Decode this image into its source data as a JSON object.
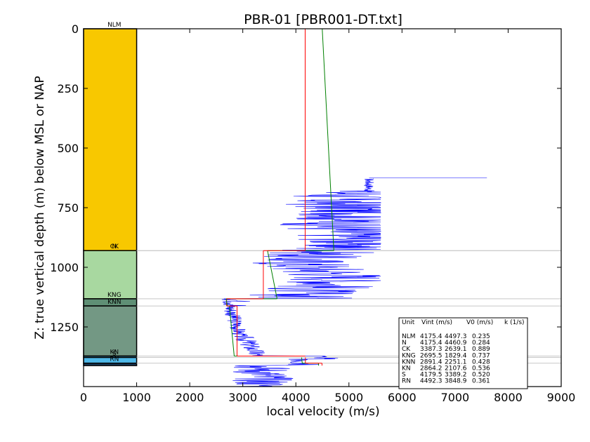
{
  "chart_data": {
    "type": "line",
    "title": "PBR-01 [PBR001-DT.txt]",
    "xlabel": "local velocity (m/s)",
    "ylabel": "Z: true vertical depth (m) below MSL or NAP",
    "xlim": [
      0,
      9000
    ],
    "ylim": [
      1500,
      0
    ],
    "x_ticks": [
      "0",
      "1000",
      "2000",
      "3000",
      "4000",
      "5000",
      "6000",
      "7000",
      "8000",
      "9000"
    ],
    "y_ticks": [
      "0",
      "250",
      "500",
      "750",
      "1000",
      "1250"
    ],
    "units": [
      {
        "name": "NLM",
        "top": 0,
        "base": 930,
        "color": "#f8c800"
      },
      {
        "name": "N",
        "top": 930,
        "base": 930,
        "color": "#f8c800"
      },
      {
        "name": "CK",
        "top": 930,
        "base": 1132,
        "color": "#a8d8a0"
      },
      {
        "name": "KNG",
        "top": 1132,
        "base": 1162,
        "color": "#5f8f75"
      },
      {
        "name": "KNN",
        "top": 1162,
        "base": 1372,
        "color": "#739884"
      },
      {
        "name": "KN",
        "top": 1372,
        "base": 1378,
        "color": "#4fb8e8"
      },
      {
        "name": "S",
        "top": 1378,
        "base": 1402,
        "color": "#4fb8e8"
      },
      {
        "name": "RN",
        "top": 1402,
        "base": 1412,
        "color": "#1a3a5a"
      }
    ],
    "vint_series": [
      {
        "unit": "NLM",
        "x": [
          4175.4,
          4175.4
        ],
        "y": [
          0,
          930
        ]
      },
      {
        "unit": "CK",
        "x": [
          3387.3,
          3387.3
        ],
        "y": [
          930,
          1132
        ]
      },
      {
        "unit": "KNG",
        "x": [
          2695.5,
          2695.5
        ],
        "y": [
          1132,
          1162
        ]
      },
      {
        "unit": "KNN",
        "x": [
          2891.4,
          2891.4
        ],
        "y": [
          1162,
          1372
        ]
      },
      {
        "unit": "S",
        "x": [
          4179.5,
          4179.5
        ],
        "y": [
          1378,
          1402
        ]
      },
      {
        "unit": "RN",
        "x": [
          4492.3,
          4492.3
        ],
        "y": [
          1402,
          1412
        ]
      }
    ],
    "v0k_series": [
      {
        "unit": "NLM",
        "x": [
          4497,
          4716
        ],
        "y": [
          0,
          930
        ]
      },
      {
        "unit": "CK",
        "x": [
          3466,
          3646
        ],
        "y": [
          930,
          1132
        ]
      },
      {
        "unit": "KNG",
        "x": [
          2686,
          2708
        ],
        "y": [
          1132,
          1162
        ]
      },
      {
        "unit": "KNN",
        "x": [
          2748,
          2838
        ],
        "y": [
          1162,
          1372
        ]
      },
      {
        "unit": "S",
        "x": [
          4108,
          4121
        ],
        "y": [
          1378,
          1402
        ]
      },
      {
        "unit": "RN",
        "x": [
          4425,
          4429
        ],
        "y": [
          1402,
          1412
        ]
      }
    ],
    "table": {
      "header": [
        "Unit",
        "Vint (m/s)",
        "V0 (m/s)",
        "k (1/s)"
      ],
      "rows": [
        [
          "NLM",
          "4175.4",
          "4497.3",
          "0.235"
        ],
        [
          "N",
          "4175.4",
          "4460.9",
          "0.284"
        ],
        [
          "CK",
          "3387.3",
          "2639.1",
          "0.889"
        ],
        [
          "KNG",
          "2695.5",
          "1829.4",
          "0.737"
        ],
        [
          "KNN",
          "2891.4",
          "2251.1",
          "0.428"
        ],
        [
          "KN",
          "2864.2",
          "2107.6",
          "0.536"
        ],
        [
          "S",
          "4179.5",
          "3389.2",
          "0.520"
        ],
        [
          "RN",
          "4492.3",
          "3848.9",
          "0.361"
        ]
      ]
    },
    "colors": {
      "velocity_log": "#0000ff",
      "vint": "#ff0000",
      "v0k": "#008000",
      "boundary": "#c8c8c8"
    },
    "grid": false
  }
}
